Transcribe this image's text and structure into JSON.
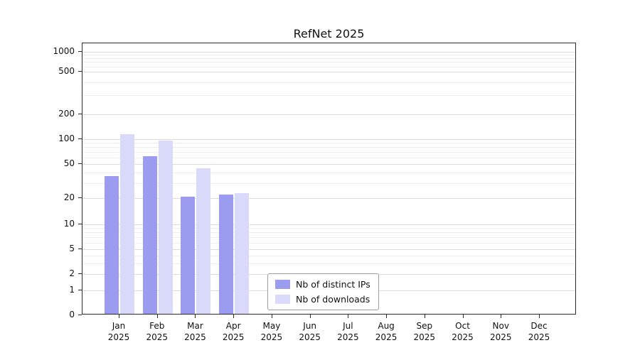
{
  "chart_data": {
    "type": "bar",
    "title": "RefNet 2025",
    "categories": [
      "Jan",
      "Feb",
      "Mar",
      "Apr",
      "May",
      "Jun",
      "Jul",
      "Aug",
      "Sep",
      "Oct",
      "Nov",
      "Dec"
    ],
    "year": "2025",
    "series": [
      {
        "name": "Nb of distinct IPs",
        "color": "#9b9bef",
        "values": [
          35,
          60,
          20,
          21,
          0,
          0,
          0,
          0,
          0,
          0,
          0,
          0
        ]
      },
      {
        "name": "Nb of downloads",
        "color": "#d9d9f9",
        "values": [
          110,
          92,
          43,
          22,
          0,
          0,
          0,
          0,
          0,
          0,
          0,
          0
        ]
      }
    ],
    "yticks": [
      0,
      1,
      2,
      5,
      10,
      20,
      50,
      100,
      200,
      500,
      1000
    ],
    "scale": "log-with-zero",
    "grid": true,
    "legend_position": "inside-bottom-center-left"
  }
}
